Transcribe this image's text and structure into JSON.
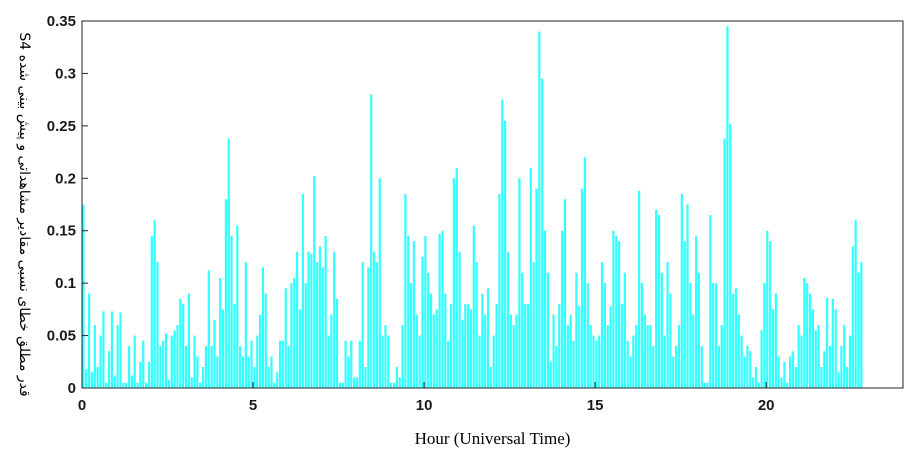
{
  "chart_data": {
    "type": "bar",
    "title": "",
    "xlabel": "Hour (Universal Time)",
    "ylabel": "قدر مطلق خطای نسبی مقادیر مشاهداتی و پیش بینی شده S4",
    "xlim": [
      0,
      24
    ],
    "ylim": [
      0,
      0.35
    ],
    "xticks": [
      0,
      5,
      10,
      15,
      20
    ],
    "yticks": [
      0,
      0.05,
      0.1,
      0.15,
      0.2,
      0.25,
      0.3,
      0.35
    ],
    "xtick_labels": [
      "0",
      "5",
      "10",
      "15",
      "20"
    ],
    "ytick_labels": [
      "0",
      "0.05",
      "0.1",
      "0.15",
      "0.2",
      "0.25",
      "0.3",
      "0.35"
    ],
    "grid": false,
    "bar_color": "#33ffff",
    "bin_width_hours": 0.0833,
    "values": [
      0.175,
      0.018,
      0.09,
      0.015,
      0.06,
      0.02,
      0.05,
      0.073,
      0.005,
      0.035,
      0.073,
      0.012,
      0.06,
      0.072,
      0.005,
      0.005,
      0.04,
      0.012,
      0.05,
      0.005,
      0.025,
      0.045,
      0.005,
      0.025,
      0.145,
      0.16,
      0.12,
      0.04,
      0.045,
      0.052,
      0.008,
      0.05,
      0.055,
      0.06,
      0.085,
      0.08,
      0.04,
      0.09,
      0.01,
      0.05,
      0.03,
      0.005,
      0.02,
      0.04,
      0.112,
      0.04,
      0.065,
      0.03,
      0.105,
      0.075,
      0.18,
      0.238,
      0.145,
      0.08,
      0.155,
      0.04,
      0.03,
      0.12,
      0.03,
      0.045,
      0.02,
      0.05,
      0.07,
      0.115,
      0.09,
      0.02,
      0.03,
      0.005,
      0.015,
      0.045,
      0.045,
      0.095,
      0.04,
      0.1,
      0.105,
      0.13,
      0.075,
      0.185,
      0.1,
      0.13,
      0.128,
      0.202,
      0.12,
      0.135,
      0.115,
      0.145,
      0.05,
      0.07,
      0.13,
      0.085,
      0.005,
      0.005,
      0.045,
      0.03,
      0.045,
      0.01,
      0.01,
      0.045,
      0.12,
      0.02,
      0.115,
      0.28,
      0.13,
      0.12,
      0.2,
      0.05,
      0.06,
      0.05,
      0.005,
      0.005,
      0.02,
      0.01,
      0.06,
      0.185,
      0.145,
      0.1,
      0.14,
      0.07,
      0.05,
      0.125,
      0.145,
      0.11,
      0.09,
      0.07,
      0.075,
      0.147,
      0.15,
      0.09,
      0.045,
      0.08,
      0.2,
      0.21,
      0.13,
      0.065,
      0.08,
      0.08,
      0.075,
      0.155,
      0.12,
      0.05,
      0.09,
      0.07,
      0.095,
      0.02,
      0.05,
      0.08,
      0.185,
      0.275,
      0.255,
      0.13,
      0.07,
      0.06,
      0.07,
      0.2,
      0.11,
      0.08,
      0.08,
      0.21,
      0.12,
      0.19,
      0.34,
      0.295,
      0.15,
      0.11,
      0.025,
      0.07,
      0.04,
      0.08,
      0.15,
      0.18,
      0.06,
      0.07,
      0.045,
      0.11,
      0.078,
      0.19,
      0.22,
      0.1,
      0.06,
      0.05,
      0.045,
      0.05,
      0.12,
      0.1,
      0.06,
      0.078,
      0.15,
      0.145,
      0.14,
      0.08,
      0.11,
      0.045,
      0.03,
      0.05,
      0.06,
      0.188,
      0.1,
      0.07,
      0.06,
      0.06,
      0.04,
      0.17,
      0.165,
      0.11,
      0.05,
      0.12,
      0.09,
      0.03,
      0.04,
      0.06,
      0.185,
      0.14,
      0.175,
      0.1,
      0.07,
      0.145,
      0.11,
      0.04,
      0.005,
      0.005,
      0.165,
      0.1,
      0.1,
      0.04,
      0.06,
      0.238,
      0.345,
      0.252,
      0.09,
      0.095,
      0.07,
      0.05,
      0.03,
      0.04,
      0.035,
      0.01,
      0.02,
      0.005,
      0.055,
      0.1,
      0.15,
      0.14,
      0.075,
      0.09,
      0.03,
      0.01,
      0.025,
      0.005,
      0.03,
      0.035,
      0.02,
      0.06,
      0.05,
      0.105,
      0.1,
      0.09,
      0.075,
      0.055,
      0.06,
      0.02,
      0.035,
      0.086,
      0.04,
      0.085,
      0.075,
      0.015,
      0.04,
      0.06,
      0.02,
      0.05,
      0.135,
      0.16,
      0.11,
      0.12
    ]
  }
}
